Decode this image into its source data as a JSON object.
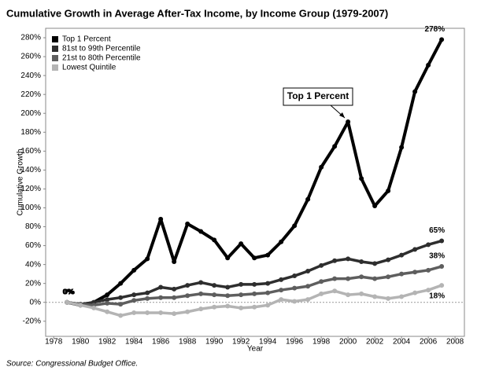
{
  "chart_data": {
    "type": "line",
    "title": "Cumulative Growth in Average After-Tax Income, by Income Group (1979-2007)",
    "x_label": "Year",
    "y_label": "Cumulative Growth",
    "source": "Source: Congressional Budget Office.",
    "annotation": "Top 1 Percent",
    "x": [
      1979,
      1980,
      1981,
      1982,
      1983,
      1984,
      1985,
      1986,
      1987,
      1988,
      1989,
      1990,
      1991,
      1992,
      1993,
      1994,
      1995,
      1996,
      1997,
      1998,
      1999,
      2000,
      2001,
      2002,
      2003,
      2004,
      2005,
      2006,
      2007
    ],
    "xlim": [
      1977.4,
      2008.7
    ],
    "xticks": [
      1978,
      1980,
      1982,
      1984,
      1986,
      1988,
      1990,
      1992,
      1994,
      1996,
      1998,
      2000,
      2002,
      2004,
      2006,
      2008
    ],
    "ylim": [
      -36,
      290
    ],
    "yticks": [
      {
        "value": -20,
        "label": "-20%"
      },
      {
        "value": 0,
        "label": "0%"
      },
      {
        "value": 20,
        "label": "20%"
      },
      {
        "value": 40,
        "label": "40%"
      },
      {
        "value": 60,
        "label": "60%"
      },
      {
        "value": 80,
        "label": "80%"
      },
      {
        "value": 100,
        "label": "100%"
      },
      {
        "value": 120,
        "label": "120%"
      },
      {
        "value": 140,
        "label": "140%"
      },
      {
        "value": 160,
        "label": "160%"
      },
      {
        "value": 180,
        "label": "180%"
      },
      {
        "value": 200,
        "label": "200%"
      },
      {
        "value": 220,
        "label": "220%"
      },
      {
        "value": 240,
        "label": "240%"
      },
      {
        "value": 260,
        "label": "260%"
      },
      {
        "value": 280,
        "label": "280%"
      }
    ],
    "legend": "top-left",
    "series": [
      {
        "name": "Top 1 Percent",
        "color": "#000000",
        "values": [
          0,
          -3,
          0,
          8,
          20,
          34,
          46,
          88,
          43,
          83,
          75,
          66,
          47,
          62,
          47,
          50,
          64,
          81,
          109,
          143,
          165,
          191,
          131,
          102,
          118,
          164,
          223,
          251,
          278
        ],
        "value_labels": [
          "0%",
          null,
          null,
          null,
          null,
          null,
          null,
          null,
          null,
          null,
          null,
          null,
          null,
          null,
          null,
          null,
          null,
          null,
          null,
          null,
          null,
          null,
          null,
          null,
          null,
          null,
          null,
          null,
          "278%"
        ]
      },
      {
        "name": "81st to 99th Percentile",
        "color": "#2e2e2e",
        "values": [
          0,
          -2,
          0,
          3,
          5,
          8,
          10,
          16,
          14,
          18,
          21,
          18,
          16,
          19,
          19,
          20,
          24,
          28,
          33,
          39,
          44,
          46,
          43,
          41,
          45,
          50,
          56,
          61,
          65
        ],
        "value_labels": [
          "0%",
          null,
          null,
          null,
          null,
          null,
          null,
          null,
          null,
          null,
          null,
          null,
          null,
          null,
          null,
          null,
          null,
          null,
          null,
          null,
          null,
          null,
          null,
          null,
          null,
          null,
          null,
          null,
          "65%"
        ]
      },
      {
        "name": "21st to 80th Percentile",
        "color": "#5e5e5e",
        "values": [
          0,
          -2,
          -3,
          -1,
          -2,
          2,
          4,
          5,
          5,
          7,
          9,
          8,
          7,
          8,
          9,
          10,
          13,
          15,
          17,
          22,
          25,
          25,
          27,
          25,
          27,
          30,
          32,
          34,
          38
        ],
        "value_labels": [
          "0%",
          null,
          null,
          null,
          null,
          null,
          null,
          null,
          null,
          null,
          null,
          null,
          null,
          null,
          null,
          null,
          null,
          null,
          null,
          null,
          null,
          null,
          null,
          null,
          null,
          null,
          null,
          null,
          "38%"
        ]
      },
      {
        "name": "Lowest Quintile",
        "color": "#b4b4b4",
        "values": [
          0,
          -3,
          -6,
          -10,
          -14,
          -11,
          -11,
          -11,
          -12,
          -10,
          -7,
          -5,
          -4,
          -6,
          -5,
          -3,
          3,
          1,
          3,
          9,
          12,
          8,
          9,
          6,
          4,
          6,
          10,
          13,
          18
        ],
        "value_labels": [
          "0%",
          null,
          null,
          null,
          null,
          null,
          null,
          null,
          null,
          null,
          null,
          null,
          null,
          null,
          null,
          null,
          null,
          null,
          null,
          null,
          null,
          null,
          null,
          null,
          null,
          null,
          null,
          null,
          "18%"
        ]
      }
    ]
  }
}
